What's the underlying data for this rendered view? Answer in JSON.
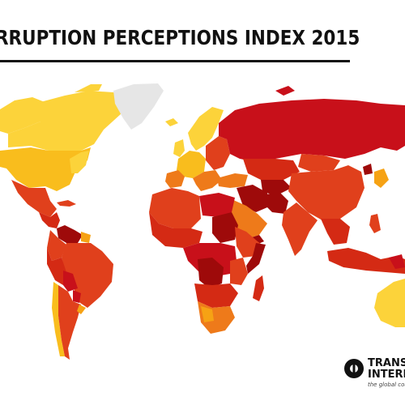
{
  "header": {
    "title": "RRUPTION PERCEPTIONS INDEX 2015"
  },
  "logo": {
    "line1": "TRANS",
    "line2": "INTERN",
    "tagline": "the global coali"
  },
  "colors": {
    "darkest_red": "#9e0a0a",
    "dark_red": "#c8101a",
    "red": "#d42a14",
    "red_orange": "#e0401c",
    "orange": "#ee7a1a",
    "light_orange": "#f6a214",
    "yellow_orange": "#f9bd1d",
    "yellow": "#fcd33a",
    "no_data": "#e6e6e6"
  }
}
